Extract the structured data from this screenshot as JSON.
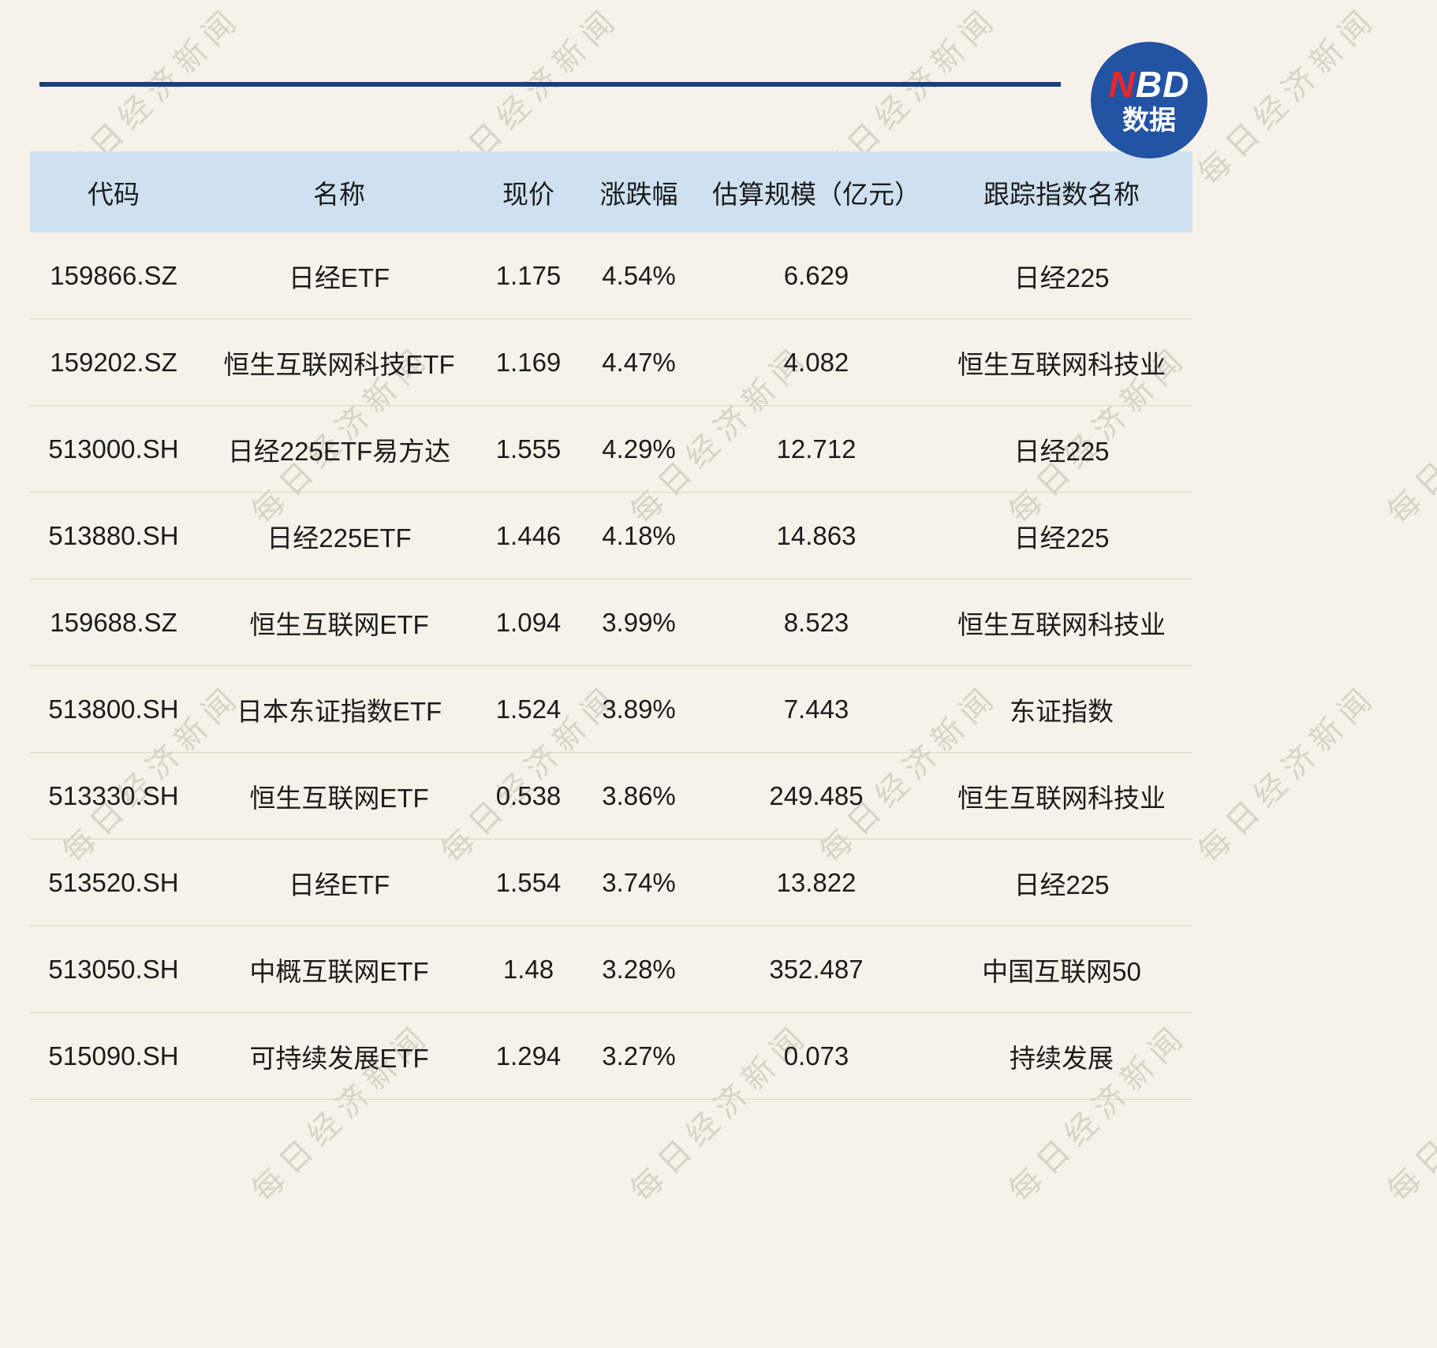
{
  "logo": {
    "n": "N",
    "bd": "BD",
    "subtitle": "数据"
  },
  "watermark": {
    "text": "每日经济新闻"
  },
  "table": {
    "columns": [
      "代码",
      "名称",
      "现价",
      "涨跌幅",
      "估算规模（亿元）",
      "跟踪指数名称"
    ],
    "rows": [
      {
        "code": "159866.SZ",
        "name": "日经ETF",
        "price": "1.175",
        "change": "4.54%",
        "scale": "6.629",
        "index": "日经225"
      },
      {
        "code": "159202.SZ",
        "name": "恒生互联网科技ETF",
        "price": "1.169",
        "change": "4.47%",
        "scale": "4.082",
        "index": "恒生互联网科技业"
      },
      {
        "code": "513000.SH",
        "name": "日经225ETF易方达",
        "price": "1.555",
        "change": "4.29%",
        "scale": "12.712",
        "index": "日经225"
      },
      {
        "code": "513880.SH",
        "name": "日经225ETF",
        "price": "1.446",
        "change": "4.18%",
        "scale": "14.863",
        "index": "日经225"
      },
      {
        "code": "159688.SZ",
        "name": "恒生互联网ETF",
        "price": "1.094",
        "change": "3.99%",
        "scale": "8.523",
        "index": "恒生互联网科技业"
      },
      {
        "code": "513800.SH",
        "name": "日本东证指数ETF",
        "price": "1.524",
        "change": "3.89%",
        "scale": "7.443",
        "index": "东证指数"
      },
      {
        "code": "513330.SH",
        "name": "恒生互联网ETF",
        "price": "0.538",
        "change": "3.86%",
        "scale": "249.485",
        "index": "恒生互联网科技业"
      },
      {
        "code": "513520.SH",
        "name": "日经ETF",
        "price": "1.554",
        "change": "3.74%",
        "scale": "13.822",
        "index": "日经225"
      },
      {
        "code": "513050.SH",
        "name": "中概互联网ETF",
        "price": "1.48",
        "change": "3.28%",
        "scale": "352.487",
        "index": "中国互联网50"
      },
      {
        "code": "515090.SH",
        "name": "可持续发展ETF",
        "price": "1.294",
        "change": "3.27%",
        "scale": "0.073",
        "index": "持续发展"
      }
    ]
  },
  "chart_data": {
    "type": "table",
    "columns": [
      "代码",
      "名称",
      "现价",
      "涨跌幅",
      "估算规模（亿元）",
      "跟踪指数名称"
    ],
    "rows": [
      [
        "159866.SZ",
        "日经ETF",
        1.175,
        "4.54%",
        6.629,
        "日经225"
      ],
      [
        "159202.SZ",
        "恒生互联网科技ETF",
        1.169,
        "4.47%",
        4.082,
        "恒生互联网科技业"
      ],
      [
        "513000.SH",
        "日经225ETF易方达",
        1.555,
        "4.29%",
        12.712,
        "日经225"
      ],
      [
        "513880.SH",
        "日经225ETF",
        1.446,
        "4.18%",
        14.863,
        "日经225"
      ],
      [
        "159688.SZ",
        "恒生互联网ETF",
        1.094,
        "3.99%",
        8.523,
        "恒生互联网科技业"
      ],
      [
        "513800.SH",
        "日本东证指数ETF",
        1.524,
        "3.89%",
        7.443,
        "东证指数"
      ],
      [
        "513330.SH",
        "恒生互联网ETF",
        0.538,
        "3.86%",
        249.485,
        "恒生互联网科技业"
      ],
      [
        "513520.SH",
        "日经ETF",
        1.554,
        "3.74%",
        13.822,
        "日经225"
      ],
      [
        "513050.SH",
        "中概互联网ETF",
        1.48,
        "3.28%",
        352.487,
        "中国互联网50"
      ],
      [
        "515090.SH",
        "可持续发展ETF",
        1.294,
        "3.27%",
        0.073,
        "持续发展"
      ]
    ],
    "title": "",
    "legend_position": "none",
    "grid": "horizontal-row-separators"
  }
}
